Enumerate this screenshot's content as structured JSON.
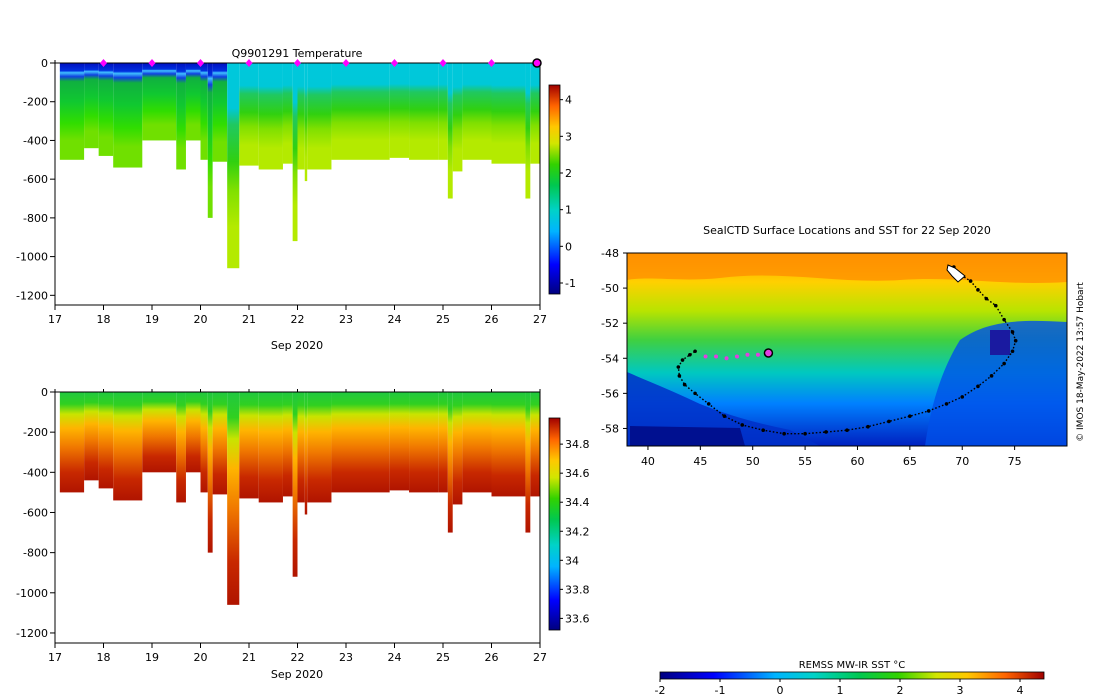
{
  "chart_data": [
    {
      "type": "heatmap",
      "title": "Q9901291  Temperature",
      "xlabel": "Sep 2020",
      "ylabel": "",
      "x_ticks": [
        "17",
        "18",
        "19",
        "20",
        "21",
        "22",
        "23",
        "24",
        "25",
        "26",
        "27"
      ],
      "xlim": [
        17,
        27
      ],
      "y_ticks": [
        "0",
        "-200",
        "-400",
        "-600",
        "-800",
        "-1000",
        "-1200"
      ],
      "ylim": [
        -1250,
        0
      ],
      "colorbar": {
        "ticks": [
          "-1",
          "0",
          "1",
          "2",
          "3",
          "4"
        ],
        "range": [
          -1.3,
          4.4
        ]
      },
      "colorscale": "jet",
      "profile_markers_days": [
        18,
        19,
        20,
        21,
        22,
        23,
        24,
        25,
        26
      ],
      "latest_profile_marker_day": 27,
      "marker_color": "#ff00ff",
      "profile_max_depths": [
        {
          "start": 17.1,
          "end": 17.6,
          "depth": 500
        },
        {
          "start": 17.6,
          "end": 17.9,
          "depth": 440
        },
        {
          "start": 17.9,
          "end": 18.2,
          "depth": 480
        },
        {
          "start": 18.2,
          "end": 18.8,
          "depth": 540
        },
        {
          "start": 18.8,
          "end": 19.5,
          "depth": 400
        },
        {
          "start": 19.5,
          "end": 19.7,
          "depth": 550
        },
        {
          "start": 19.7,
          "end": 20.0,
          "depth": 400
        },
        {
          "start": 20.0,
          "end": 20.15,
          "depth": 500
        },
        {
          "start": 20.15,
          "end": 20.25,
          "depth": 800
        },
        {
          "start": 20.25,
          "end": 20.55,
          "depth": 510
        },
        {
          "start": 20.55,
          "end": 20.8,
          "depth": 1060
        },
        {
          "start": 20.8,
          "end": 21.2,
          "depth": 530
        },
        {
          "start": 21.2,
          "end": 21.7,
          "depth": 550
        },
        {
          "start": 21.7,
          "end": 21.9,
          "depth": 520
        },
        {
          "start": 21.9,
          "end": 22.0,
          "depth": 920
        },
        {
          "start": 22.0,
          "end": 22.15,
          "depth": 550
        },
        {
          "start": 22.15,
          "end": 22.2,
          "depth": 610
        },
        {
          "start": 22.2,
          "end": 22.7,
          "depth": 550
        },
        {
          "start": 22.7,
          "end": 23.0,
          "depth": 500
        },
        {
          "start": 23.0,
          "end": 23.9,
          "depth": 500
        },
        {
          "start": 23.9,
          "end": 24.3,
          "depth": 490
        },
        {
          "start": 24.3,
          "end": 24.9,
          "depth": 500
        },
        {
          "start": 24.9,
          "end": 25.1,
          "depth": 500
        },
        {
          "start": 25.1,
          "end": 25.2,
          "depth": 700
        },
        {
          "start": 25.2,
          "end": 25.4,
          "depth": 560
        },
        {
          "start": 25.4,
          "end": 26.0,
          "depth": 500
        },
        {
          "start": 26.0,
          "end": 26.7,
          "depth": 520
        },
        {
          "start": 26.7,
          "end": 26.8,
          "depth": 700
        },
        {
          "start": 26.8,
          "end": 27.0,
          "depth": 520
        }
      ]
    },
    {
      "type": "heatmap",
      "title": "",
      "xlabel": "Sep 2020",
      "ylabel": "",
      "x_ticks": [
        "17",
        "18",
        "19",
        "20",
        "21",
        "22",
        "23",
        "24",
        "25",
        "26",
        "27"
      ],
      "xlim": [
        17,
        27
      ],
      "y_ticks": [
        "0",
        "-200",
        "-400",
        "-600",
        "-800",
        "-1000",
        "-1200"
      ],
      "ylim": [
        -1250,
        0
      ],
      "colorbar": {
        "ticks": [
          "33.6",
          "33.8",
          "34",
          "34.2",
          "34.4",
          "34.6",
          "34.8"
        ],
        "range": [
          33.52,
          34.98
        ]
      },
      "colorscale": "jet",
      "profile_max_depths_same_as": "temperature"
    },
    {
      "type": "heatmap",
      "title": "SealCTD Surface Locations and SST for 22 Sep 2020",
      "xlabel": "",
      "ylabel": "",
      "x_ticks": [
        "40",
        "45",
        "50",
        "55",
        "60",
        "65",
        "70",
        "75"
      ],
      "xlim": [
        38,
        80
      ],
      "y_ticks": [
        "-48",
        "-50",
        "-52",
        "-54",
        "-56",
        "-58"
      ],
      "ylim": [
        -59,
        -48
      ],
      "colorbar": {
        "label": "REMSS MW-IR SST °C",
        "ticks": [
          "-2",
          "-1",
          "0",
          "1",
          "2",
          "3",
          "4"
        ],
        "range": [
          -2,
          4.4
        ]
      },
      "colorscale": "jet",
      "side_text": "© IMOS 18-May-2022 13:57 Hobart",
      "track_points": [
        [
          69.2,
          -48.8
        ],
        [
          70.0,
          -49.3
        ],
        [
          70.8,
          -49.6
        ],
        [
          71.5,
          -50.1
        ],
        [
          72.3,
          -50.6
        ],
        [
          73.2,
          -51.0
        ],
        [
          74.0,
          -51.8
        ],
        [
          74.8,
          -52.5
        ],
        [
          75.1,
          -53.0
        ],
        [
          74.8,
          -53.6
        ],
        [
          74.0,
          -54.3
        ],
        [
          72.8,
          -55.0
        ],
        [
          71.5,
          -55.6
        ],
        [
          70.0,
          -56.2
        ],
        [
          68.5,
          -56.6
        ],
        [
          66.8,
          -57.0
        ],
        [
          65.0,
          -57.3
        ],
        [
          63.0,
          -57.6
        ],
        [
          61.0,
          -57.9
        ],
        [
          59.0,
          -58.1
        ],
        [
          57.0,
          -58.2
        ],
        [
          55.0,
          -58.3
        ],
        [
          53.0,
          -58.3
        ],
        [
          51.0,
          -58.1
        ],
        [
          49.0,
          -57.8
        ],
        [
          47.3,
          -57.3
        ],
        [
          45.8,
          -56.6
        ],
        [
          44.5,
          -56.0
        ],
        [
          43.5,
          -55.5
        ],
        [
          43.0,
          -55.0
        ],
        [
          42.9,
          -54.5
        ],
        [
          43.3,
          -54.1
        ],
        [
          44.0,
          -53.8
        ],
        [
          44.5,
          -53.6
        ]
      ],
      "recent_track_points": [
        [
          45.5,
          -53.9
        ],
        [
          46.5,
          -53.9
        ],
        [
          47.5,
          -54.0
        ],
        [
          48.5,
          -53.9
        ],
        [
          49.5,
          -53.8
        ],
        [
          50.5,
          -53.8
        ]
      ],
      "current_position": [
        51.5,
        -53.7
      ]
    }
  ]
}
